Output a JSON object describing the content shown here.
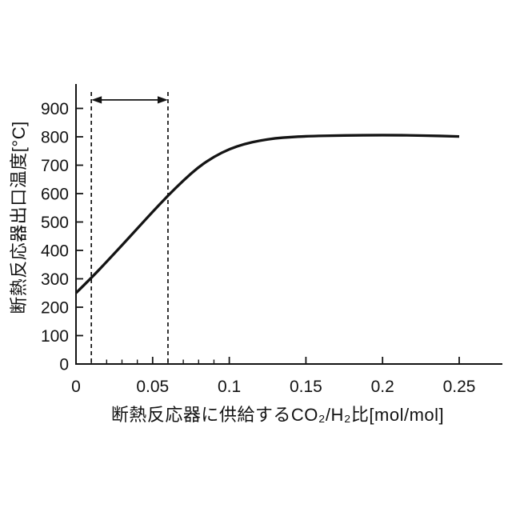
{
  "figure": {
    "background": "#ffffff",
    "line_color": "#141414",
    "axis_color": "#141414",
    "text_color": "#121212"
  },
  "chart_data": {
    "type": "line",
    "title": "",
    "xlabel": "断熱反応器に供給するCO₂/H₂比[mol/mol]",
    "ylabel": "断熱反応器出口温度[°C]",
    "xlim": [
      0,
      0.278
    ],
    "ylim": [
      0,
      985
    ],
    "grid": false,
    "legend": null,
    "xticks": {
      "major": [
        0,
        0.05,
        0.1,
        0.15,
        0.2,
        0.25
      ],
      "labels": [
        "0",
        "0.05",
        "0.1",
        "0.15",
        "0.2",
        "0.25"
      ],
      "minor_step": 0.01,
      "minor_range": [
        0,
        0.1
      ]
    },
    "yticks": {
      "major": [
        0,
        100,
        200,
        300,
        400,
        500,
        600,
        700,
        800,
        900
      ],
      "labels": [
        "0",
        "100",
        "200",
        "300",
        "400",
        "500",
        "600",
        "700",
        "800",
        "900"
      ]
    },
    "series": [
      {
        "name": "断熱反応器出口温度",
        "x": [
          0,
          0.01,
          0.02,
          0.03,
          0.04,
          0.05,
          0.06,
          0.07,
          0.08,
          0.09,
          0.1,
          0.11,
          0.12,
          0.13,
          0.14,
          0.15,
          0.175,
          0.2,
          0.225,
          0.25
        ],
        "y": [
          250,
          303,
          360,
          418,
          477,
          536,
          593,
          646,
          694,
          730,
          757,
          775,
          787,
          795,
          799,
          802,
          805,
          806,
          805,
          801
        ]
      }
    ],
    "annotations": {
      "dashed_vlines_x": [
        0.01,
        0.06
      ],
      "double_arrow": {
        "x_from": 0.01,
        "x_to": 0.06,
        "y": 930
      }
    }
  }
}
